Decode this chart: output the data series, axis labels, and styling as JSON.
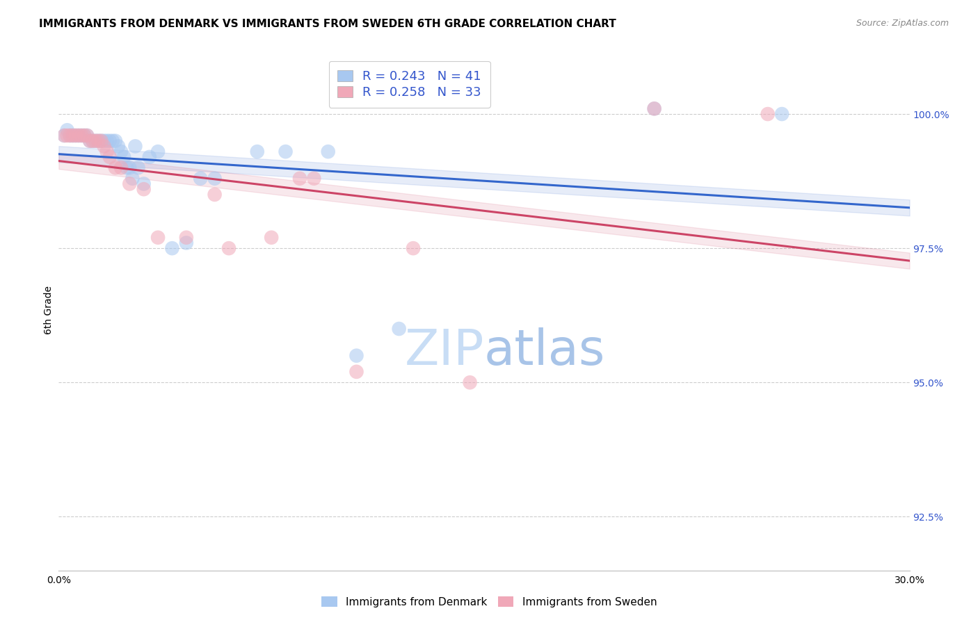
{
  "title": "IMMIGRANTS FROM DENMARK VS IMMIGRANTS FROM SWEDEN 6TH GRADE CORRELATION CHART",
  "source": "Source: ZipAtlas.com",
  "ylabel": "6th Grade",
  "y_ticks": [
    92.5,
    95.0,
    97.5,
    100.0
  ],
  "x_range": [
    0.0,
    30.0
  ],
  "y_range": [
    91.5,
    101.2
  ],
  "denmark_color": "#a8c8f0",
  "sweden_color": "#f0a8b8",
  "denmark_line_color": "#3366cc",
  "sweden_line_color": "#cc4466",
  "R_denmark": 0.243,
  "N_denmark": 41,
  "R_sweden": 0.258,
  "N_sweden": 33,
  "denmark_x": [
    0.2,
    0.3,
    0.4,
    0.5,
    0.6,
    0.7,
    0.8,
    0.9,
    1.0,
    1.1,
    1.2,
    1.3,
    1.4,
    1.5,
    1.6,
    1.7,
    1.8,
    1.9,
    2.0,
    2.1,
    2.2,
    2.3,
    2.4,
    2.5,
    2.6,
    2.7,
    2.8,
    3.0,
    3.2,
    3.5,
    4.0,
    4.5,
    5.0,
    5.5,
    7.0,
    8.0,
    9.5,
    10.5,
    12.0,
    21.0,
    25.5
  ],
  "denmark_y": [
    99.6,
    99.7,
    99.6,
    99.6,
    99.6,
    99.6,
    99.6,
    99.6,
    99.6,
    99.5,
    99.5,
    99.5,
    99.5,
    99.5,
    99.5,
    99.5,
    99.5,
    99.5,
    99.5,
    99.4,
    99.3,
    99.2,
    99.0,
    99.0,
    98.8,
    99.4,
    99.0,
    98.7,
    99.2,
    99.3,
    97.5,
    97.6,
    98.8,
    98.8,
    99.3,
    99.3,
    99.3,
    95.5,
    96.0,
    100.1,
    100.0
  ],
  "sweden_x": [
    0.2,
    0.3,
    0.4,
    0.5,
    0.6,
    0.7,
    0.8,
    0.9,
    1.0,
    1.1,
    1.2,
    1.3,
    1.4,
    1.5,
    1.6,
    1.7,
    1.8,
    2.0,
    2.2,
    2.5,
    3.0,
    3.5,
    4.5,
    5.5,
    6.0,
    7.5,
    8.5,
    9.0,
    10.5,
    12.5,
    14.5,
    21.0,
    25.0
  ],
  "sweden_y": [
    99.6,
    99.6,
    99.6,
    99.6,
    99.6,
    99.6,
    99.6,
    99.6,
    99.6,
    99.5,
    99.5,
    99.5,
    99.5,
    99.5,
    99.4,
    99.3,
    99.2,
    99.0,
    99.0,
    98.7,
    98.6,
    97.7,
    97.7,
    98.5,
    97.5,
    97.7,
    98.8,
    98.8,
    95.2,
    97.5,
    95.0,
    100.1,
    100.0
  ],
  "background_color": "#ffffff",
  "grid_color": "#cccccc",
  "title_fontsize": 11,
  "axis_label_fontsize": 10,
  "tick_fontsize": 10,
  "legend_fontsize": 13,
  "source_fontsize": 9,
  "right_axis_color": "#3355cc",
  "watermark_color": "#ddeeff",
  "watermark_fontsize": 52
}
